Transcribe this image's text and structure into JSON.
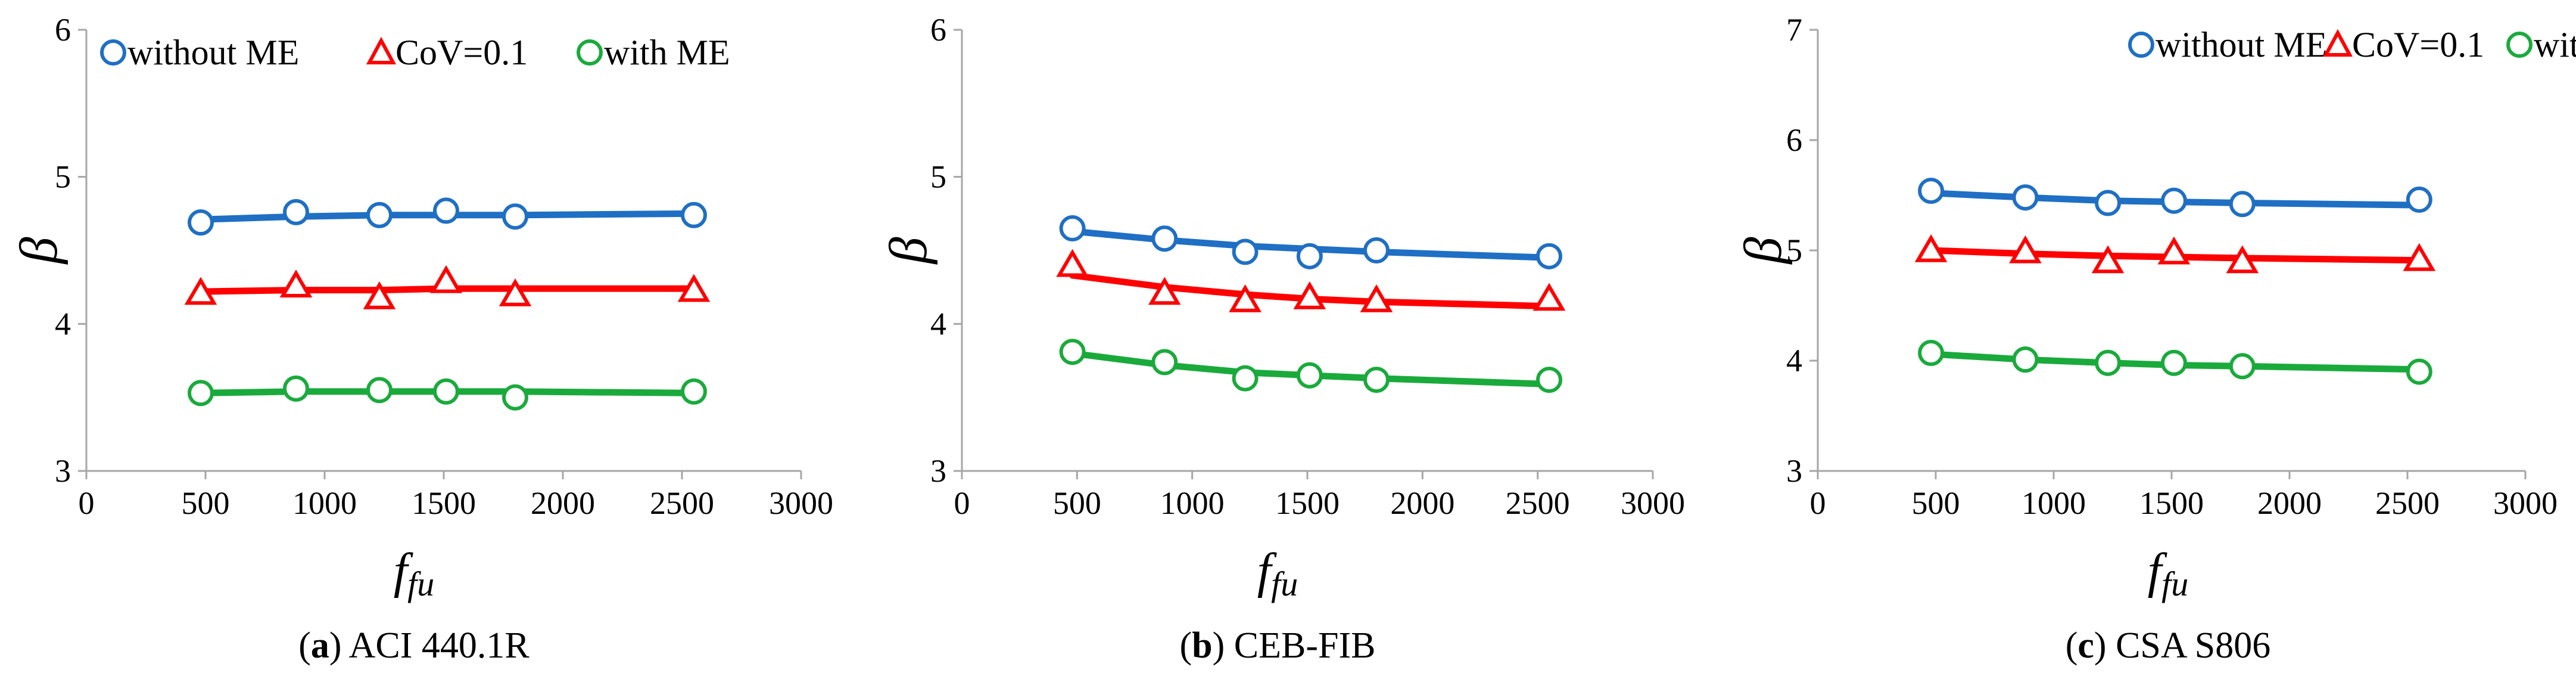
{
  "colors": {
    "without_me": "#1f6fc4",
    "cov": "#ff0000",
    "with_me": "#1aaa3c",
    "axis": "#a6a6a6"
  },
  "chart_data": [
    {
      "type": "scatter",
      "caption_letter": "a",
      "caption_text": "ACI 440.1R",
      "xlabel_main": "f",
      "xlabel_sub": "fu",
      "ylabel": "β",
      "xlim": [
        0,
        3000
      ],
      "ylim": [
        3,
        6
      ],
      "xticks": [
        0,
        500,
        1000,
        1500,
        2000,
        2500,
        3000
      ],
      "yticks": [
        3,
        4,
        5,
        6
      ],
      "x": [
        480,
        880,
        1230,
        1510,
        1800,
        2550
      ],
      "series": [
        {
          "name": "without ME",
          "marker": "circle",
          "color": "#1f6fc4",
          "values": [
            4.69,
            4.76,
            4.74,
            4.77,
            4.73,
            4.74
          ],
          "trend": [
            4.71,
            4.73,
            4.74,
            4.74,
            4.74,
            4.75
          ]
        },
        {
          "name": "CoV=0.1",
          "marker": "triangle",
          "color": "#ff0000",
          "values": [
            4.21,
            4.26,
            4.18,
            4.29,
            4.2,
            4.23
          ],
          "trend": [
            4.22,
            4.23,
            4.23,
            4.24,
            4.24,
            4.24
          ]
        },
        {
          "name": "with ME",
          "marker": "circle",
          "color": "#1aaa3c",
          "values": [
            3.53,
            3.56,
            3.55,
            3.54,
            3.5,
            3.54
          ],
          "trend": [
            3.53,
            3.54,
            3.54,
            3.54,
            3.54,
            3.53
          ]
        }
      ]
    },
    {
      "type": "scatter",
      "caption_letter": "b",
      "caption_text": "CEB-FIB",
      "xlabel_main": "f",
      "xlabel_sub": "fu",
      "ylabel": "β",
      "xlim": [
        0,
        3000
      ],
      "ylim": [
        3,
        6
      ],
      "xticks": [
        0,
        500,
        1000,
        1500,
        2000,
        2500,
        3000
      ],
      "yticks": [
        3,
        4,
        5,
        6
      ],
      "x": [
        480,
        880,
        1230,
        1510,
        1800,
        2550
      ],
      "series": [
        {
          "name": "without ME",
          "marker": "circle",
          "color": "#1f6fc4",
          "values": [
            4.65,
            4.58,
            4.49,
            4.46,
            4.5,
            4.46
          ],
          "trend": [
            4.63,
            4.57,
            4.53,
            4.51,
            4.49,
            4.45
          ]
        },
        {
          "name": "CoV=0.1",
          "marker": "triangle",
          "color": "#ff0000",
          "values": [
            4.4,
            4.21,
            4.16,
            4.18,
            4.16,
            4.17
          ],
          "trend": [
            4.33,
            4.25,
            4.2,
            4.17,
            4.15,
            4.12
          ]
        },
        {
          "name": "with ME",
          "marker": "circle",
          "color": "#1aaa3c",
          "values": [
            3.81,
            3.74,
            3.63,
            3.65,
            3.62,
            3.62
          ],
          "trend": [
            3.8,
            3.72,
            3.67,
            3.65,
            3.63,
            3.59
          ]
        }
      ]
    },
    {
      "type": "scatter",
      "caption_letter": "c",
      "caption_text": "CSA S806",
      "xlabel_main": "f",
      "xlabel_sub": "fu",
      "ylabel": "β",
      "xlim": [
        0,
        3000
      ],
      "ylim": [
        3,
        7
      ],
      "xticks": [
        0,
        500,
        1000,
        1500,
        2000,
        2500,
        3000
      ],
      "yticks": [
        3,
        4,
        5,
        6,
        7
      ],
      "x": [
        480,
        880,
        1230,
        1510,
        1800,
        2550
      ],
      "series": [
        {
          "name": "without ME",
          "marker": "circle",
          "color": "#1f6fc4",
          "values": [
            5.54,
            5.48,
            5.43,
            5.45,
            5.42,
            5.46
          ],
          "trend": [
            5.52,
            5.48,
            5.45,
            5.44,
            5.43,
            5.41
          ]
        },
        {
          "name": "CoV=0.1",
          "marker": "triangle",
          "color": "#ff0000",
          "values": [
            5.0,
            4.99,
            4.9,
            4.98,
            4.9,
            4.92
          ],
          "trend": [
            5.0,
            4.97,
            4.95,
            4.94,
            4.93,
            4.91
          ]
        },
        {
          "name": "with ME",
          "marker": "circle",
          "color": "#1aaa3c",
          "values": [
            4.07,
            4.01,
            3.98,
            3.98,
            3.95,
            3.9
          ],
          "trend": [
            4.06,
            4.01,
            3.98,
            3.96,
            3.95,
            3.92
          ]
        }
      ]
    }
  ]
}
